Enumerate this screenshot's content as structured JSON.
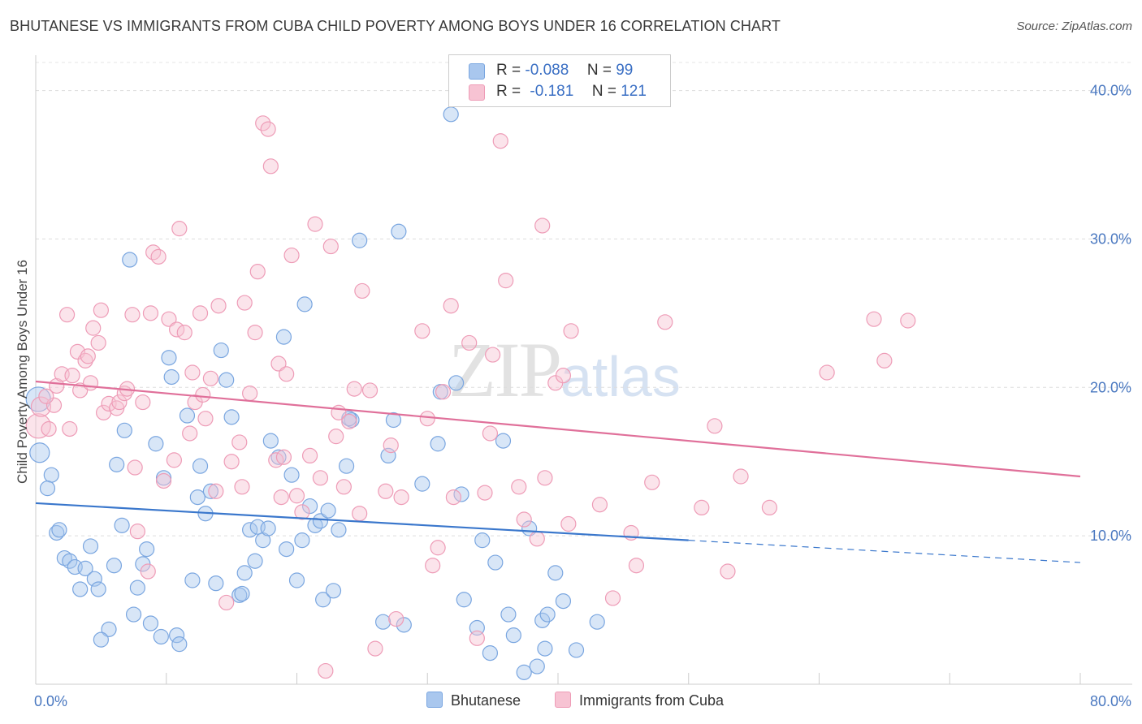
{
  "title": "BHUTANESE VS IMMIGRANTS FROM CUBA CHILD POVERTY AMONG BOYS UNDER 16 CORRELATION CHART",
  "source": "Source: ZipAtlas.com",
  "watermark": {
    "zip": "ZIP",
    "atlas": "atlas"
  },
  "legend": {
    "series": [
      {
        "r_label": "R =",
        "r_value": "-0.088",
        "n_label": "N =",
        "n_value": "99",
        "color": "#a9c7ee",
        "border": "#7aa6e0"
      },
      {
        "r_label": "R =",
        "r_value": "-0.181",
        "n_label": "N =",
        "n_value": "121",
        "color": "#f7c3d3",
        "border": "#ee9cb7"
      }
    ],
    "bottom": [
      "Bhutanese",
      "Immigrants from Cuba"
    ]
  },
  "chart_data": {
    "type": "scatter",
    "title": "BHUTANESE VS IMMIGRANTS FROM CUBA CHILD POVERTY AMONG BOYS UNDER 16 CORRELATION CHART",
    "xlabel": "",
    "ylabel": "Child Poverty Among Boys Under 16",
    "xlim": [
      0,
      80
    ],
    "ylim": [
      0,
      42
    ],
    "x_tick_labels": [
      "0.0%",
      "80.0%"
    ],
    "y_ticks": [
      10,
      20,
      30,
      40
    ],
    "y_tick_labels": [
      "10.0%",
      "20.0%",
      "30.0%",
      "40.0%"
    ],
    "grid": true,
    "legend_position": "top-center",
    "series": [
      {
        "name": "Bhutanese",
        "color": "#7aa6e0",
        "fill": "#a9c7ee",
        "trend": {
          "x": [
            0,
            50,
            80
          ],
          "y": [
            12.2,
            9.7,
            8.2
          ],
          "solid_until": 50
        },
        "points": [
          [
            0.2,
            19.2,
            3
          ],
          [
            0.3,
            15.6,
            2
          ],
          [
            1.2,
            14.1,
            1
          ],
          [
            0.9,
            13.2,
            1
          ],
          [
            1.6,
            10.2,
            1
          ],
          [
            1.8,
            10.4,
            1
          ],
          [
            2.2,
            8.5,
            1
          ],
          [
            2.6,
            8.3,
            1
          ],
          [
            3.0,
            7.9,
            1
          ],
          [
            3.8,
            7.8,
            1
          ],
          [
            4.2,
            9.3,
            1
          ],
          [
            4.5,
            7.1,
            1
          ],
          [
            3.4,
            6.4,
            1
          ],
          [
            4.8,
            6.4,
            1
          ],
          [
            5.6,
            3.7,
            1
          ],
          [
            5.0,
            3.0,
            1
          ],
          [
            6.0,
            8.0,
            1
          ],
          [
            6.2,
            14.8,
            1
          ],
          [
            6.6,
            10.7,
            1
          ],
          [
            6.8,
            17.1,
            1
          ],
          [
            7.5,
            4.7,
            1
          ],
          [
            7.8,
            6.5,
            1
          ],
          [
            8.2,
            8.1,
            1
          ],
          [
            8.5,
            9.1,
            1
          ],
          [
            8.8,
            4.1,
            1
          ],
          [
            9.2,
            16.2,
            1
          ],
          [
            9.6,
            3.2,
            1
          ],
          [
            9.8,
            13.9,
            1
          ],
          [
            10.2,
            22.0,
            1
          ],
          [
            10.4,
            20.7,
            1
          ],
          [
            10.8,
            3.3,
            1
          ],
          [
            11.0,
            2.7,
            1
          ],
          [
            11.6,
            18.1,
            1
          ],
          [
            12.0,
            7.0,
            1
          ],
          [
            12.4,
            12.6,
            1
          ],
          [
            12.6,
            14.7,
            1
          ],
          [
            13.0,
            11.5,
            1
          ],
          [
            13.4,
            13.0,
            1
          ],
          [
            13.8,
            6.8,
            1
          ],
          [
            14.2,
            22.5,
            1
          ],
          [
            14.6,
            20.5,
            1
          ],
          [
            15.0,
            18.0,
            1
          ],
          [
            15.6,
            6.0,
            1
          ],
          [
            15.8,
            6.1,
            1
          ],
          [
            16.0,
            7.5,
            1
          ],
          [
            16.4,
            10.4,
            1
          ],
          [
            16.8,
            8.3,
            1
          ],
          [
            17.0,
            10.6,
            1
          ],
          [
            17.4,
            9.7,
            1
          ],
          [
            17.8,
            10.5,
            1
          ],
          [
            18.0,
            16.4,
            1
          ],
          [
            18.6,
            15.3,
            1
          ],
          [
            19.0,
            23.4,
            1
          ],
          [
            19.2,
            9.1,
            1
          ],
          [
            19.6,
            14.1,
            1
          ],
          [
            20.0,
            7.0,
            1
          ],
          [
            20.4,
            9.7,
            1
          ],
          [
            20.6,
            25.6,
            1
          ],
          [
            21.0,
            12.0,
            1
          ],
          [
            21.4,
            10.7,
            1
          ],
          [
            21.8,
            11.0,
            1
          ],
          [
            22.0,
            5.7,
            1
          ],
          [
            22.4,
            11.7,
            1
          ],
          [
            22.8,
            6.3,
            1
          ],
          [
            23.2,
            10.4,
            1
          ],
          [
            23.8,
            14.7,
            1
          ],
          [
            24.2,
            17.8,
            1
          ],
          [
            24.8,
            29.9,
            1
          ],
          [
            26.6,
            4.2,
            1
          ],
          [
            27.0,
            15.4,
            1
          ],
          [
            27.4,
            17.8,
            1
          ],
          [
            27.8,
            30.5,
            1
          ],
          [
            28.2,
            4.0,
            1
          ],
          [
            29.6,
            13.5,
            1
          ],
          [
            30.8,
            16.2,
            1
          ],
          [
            31.0,
            19.7,
            1
          ],
          [
            31.8,
            38.4,
            1
          ],
          [
            32.2,
            20.3,
            1
          ],
          [
            32.6,
            12.8,
            1
          ],
          [
            32.8,
            5.7,
            1
          ],
          [
            33.8,
            3.8,
            1
          ],
          [
            34.2,
            9.7,
            1
          ],
          [
            34.8,
            2.1,
            1
          ],
          [
            35.2,
            8.2,
            1
          ],
          [
            35.8,
            16.4,
            1
          ],
          [
            36.2,
            4.7,
            1
          ],
          [
            36.6,
            3.3,
            1
          ],
          [
            37.4,
            0.8,
            1
          ],
          [
            37.8,
            10.5,
            1
          ],
          [
            38.4,
            1.2,
            1
          ],
          [
            38.8,
            4.3,
            1
          ],
          [
            39.0,
            2.4,
            1
          ],
          [
            39.2,
            4.7,
            1
          ],
          [
            39.8,
            7.5,
            1
          ],
          [
            40.4,
            5.6,
            1
          ],
          [
            41.4,
            2.3,
            1
          ],
          [
            43.0,
            4.2,
            1
          ],
          [
            7.2,
            28.6,
            1
          ],
          [
            24.0,
            17.9,
            1
          ]
        ]
      },
      {
        "name": "Immigrants from Cuba",
        "color": "#ee9cb7",
        "fill": "#f7c3d3",
        "trend": {
          "x": [
            0,
            80
          ],
          "y": [
            20.4,
            14.0
          ],
          "solid_until": 80
        },
        "points": [
          [
            0.2,
            17.4,
            3
          ],
          [
            0.4,
            18.7,
            2
          ],
          [
            1.0,
            17.2,
            1
          ],
          [
            1.4,
            18.8,
            1
          ],
          [
            1.6,
            20.1,
            1
          ],
          [
            2.0,
            20.9,
            1
          ],
          [
            2.4,
            24.9,
            1
          ],
          [
            2.6,
            17.2,
            1
          ],
          [
            2.8,
            20.8,
            1
          ],
          [
            3.2,
            22.4,
            1
          ],
          [
            3.4,
            19.8,
            1
          ],
          [
            3.8,
            21.8,
            1
          ],
          [
            4.0,
            22.1,
            1
          ],
          [
            4.4,
            24.0,
            1
          ],
          [
            4.8,
            23.0,
            1
          ],
          [
            5.0,
            25.2,
            1
          ],
          [
            5.2,
            18.3,
            1
          ],
          [
            5.6,
            18.9,
            1
          ],
          [
            6.2,
            18.6,
            1
          ],
          [
            6.4,
            19.0,
            1
          ],
          [
            6.8,
            19.6,
            1
          ],
          [
            7.0,
            19.9,
            1
          ],
          [
            7.4,
            24.9,
            1
          ],
          [
            7.6,
            14.6,
            1
          ],
          [
            7.8,
            10.3,
            1
          ],
          [
            8.2,
            19.0,
            1
          ],
          [
            8.6,
            7.6,
            1
          ],
          [
            8.8,
            25.0,
            1
          ],
          [
            9.0,
            29.1,
            1
          ],
          [
            9.4,
            28.8,
            1
          ],
          [
            9.8,
            13.7,
            1
          ],
          [
            10.2,
            24.6,
            1
          ],
          [
            10.6,
            15.1,
            1
          ],
          [
            10.8,
            23.9,
            1
          ],
          [
            11.0,
            30.7,
            1
          ],
          [
            11.4,
            23.7,
            1
          ],
          [
            11.8,
            16.9,
            1
          ],
          [
            12.0,
            21.0,
            1
          ],
          [
            12.2,
            19.0,
            1
          ],
          [
            12.6,
            25.0,
            1
          ],
          [
            13.0,
            17.9,
            1
          ],
          [
            13.4,
            20.6,
            1
          ],
          [
            13.8,
            13.0,
            1
          ],
          [
            14.0,
            25.5,
            1
          ],
          [
            14.6,
            5.5,
            1
          ],
          [
            15.0,
            15.0,
            1
          ],
          [
            15.6,
            16.3,
            1
          ],
          [
            15.8,
            13.3,
            1
          ],
          [
            16.0,
            25.7,
            1
          ],
          [
            16.4,
            19.6,
            1
          ],
          [
            16.8,
            23.7,
            1
          ],
          [
            17.0,
            27.8,
            1
          ],
          [
            17.4,
            37.8,
            1
          ],
          [
            17.8,
            37.4,
            1
          ],
          [
            18.0,
            34.9,
            1
          ],
          [
            18.4,
            15.1,
            1
          ],
          [
            18.6,
            21.6,
            1
          ],
          [
            19.0,
            15.3,
            1
          ],
          [
            19.2,
            20.9,
            1
          ],
          [
            19.6,
            28.9,
            1
          ],
          [
            20.0,
            12.7,
            1
          ],
          [
            20.4,
            11.6,
            1
          ],
          [
            21.0,
            15.4,
            1
          ],
          [
            21.4,
            31.0,
            1
          ],
          [
            21.8,
            13.9,
            1
          ],
          [
            22.2,
            0.9,
            1
          ],
          [
            22.6,
            29.5,
            1
          ],
          [
            23.0,
            16.7,
            1
          ],
          [
            23.2,
            18.3,
            1
          ],
          [
            23.6,
            13.3,
            1
          ],
          [
            24.0,
            17.7,
            1
          ],
          [
            24.4,
            19.9,
            1
          ],
          [
            24.8,
            11.5,
            1
          ],
          [
            25.0,
            26.5,
            1
          ],
          [
            25.6,
            19.8,
            1
          ],
          [
            26.0,
            2.4,
            1
          ],
          [
            26.8,
            13.0,
            1
          ],
          [
            27.2,
            16.1,
            1
          ],
          [
            27.6,
            4.4,
            1
          ],
          [
            28.0,
            12.6,
            1
          ],
          [
            29.6,
            23.8,
            1
          ],
          [
            30.0,
            17.9,
            1
          ],
          [
            30.4,
            8.0,
            1
          ],
          [
            30.8,
            9.2,
            1
          ],
          [
            31.2,
            19.7,
            1
          ],
          [
            31.8,
            25.5,
            1
          ],
          [
            32.0,
            12.6,
            1
          ],
          [
            33.2,
            23.0,
            1
          ],
          [
            33.8,
            3.1,
            1
          ],
          [
            34.4,
            12.9,
            1
          ],
          [
            34.8,
            16.9,
            1
          ],
          [
            35.0,
            22.2,
            1
          ],
          [
            35.6,
            36.6,
            1
          ],
          [
            36.0,
            27.2,
            1
          ],
          [
            37.0,
            13.3,
            1
          ],
          [
            37.4,
            11.1,
            1
          ],
          [
            38.4,
            9.8,
            1
          ],
          [
            38.8,
            30.9,
            1
          ],
          [
            39.0,
            13.9,
            1
          ],
          [
            39.8,
            20.3,
            1
          ],
          [
            40.4,
            20.8,
            1
          ],
          [
            40.8,
            10.8,
            1
          ],
          [
            41.0,
            23.8,
            1
          ],
          [
            43.2,
            12.1,
            1
          ],
          [
            44.2,
            5.8,
            1
          ],
          [
            45.6,
            10.2,
            1
          ],
          [
            46.0,
            8.0,
            1
          ],
          [
            47.2,
            13.6,
            1
          ],
          [
            48.2,
            24.4,
            1
          ],
          [
            51.0,
            11.9,
            1
          ],
          [
            52.0,
            17.4,
            1
          ],
          [
            53.0,
            7.6,
            1
          ],
          [
            54.0,
            14.0,
            1
          ],
          [
            56.2,
            11.9,
            1
          ],
          [
            60.6,
            21.0,
            1
          ],
          [
            64.2,
            24.6,
            1
          ],
          [
            65.0,
            21.8,
            1
          ],
          [
            66.8,
            24.5,
            1
          ],
          [
            0.8,
            19.4,
            1
          ],
          [
            4.2,
            20.3,
            1
          ],
          [
            12.8,
            19.5,
            1
          ],
          [
            18.8,
            12.6,
            1
          ]
        ]
      }
    ]
  }
}
